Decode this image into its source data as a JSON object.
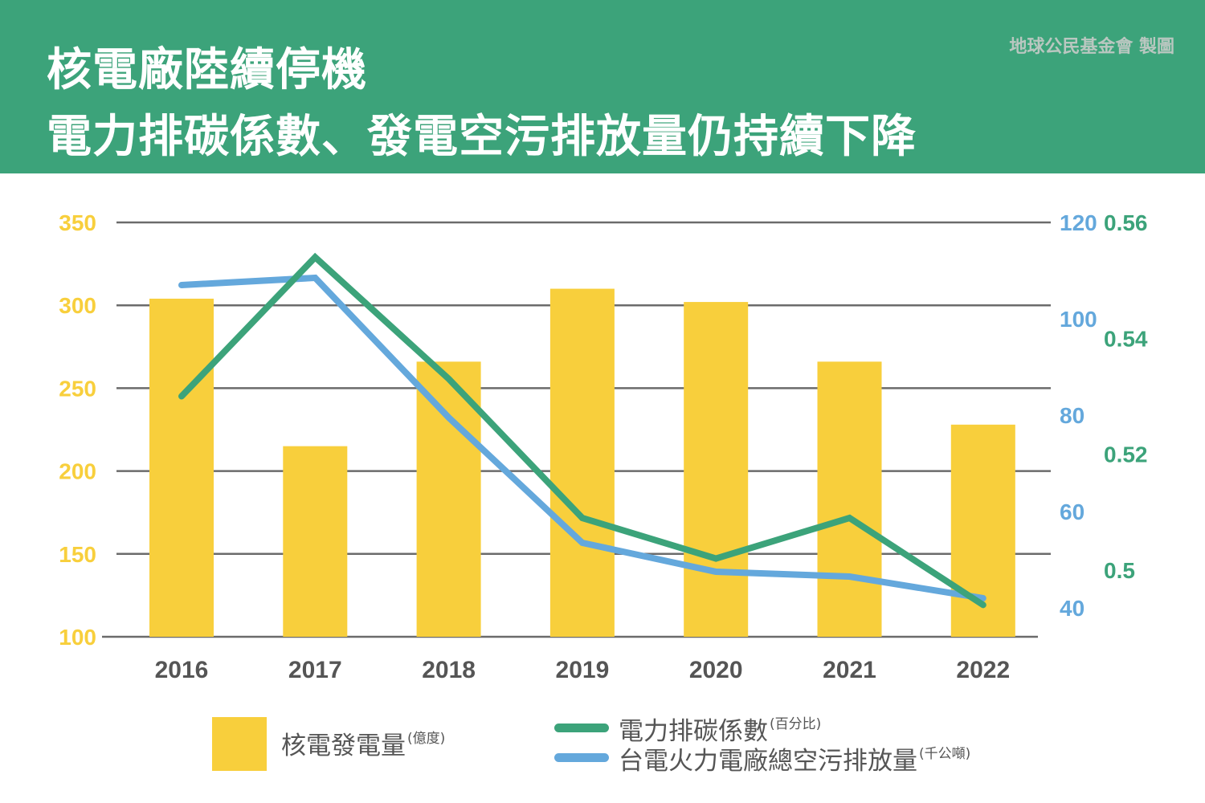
{
  "header": {
    "title_line1": "核電廠陸續停機",
    "title_line2": "電力排碳係數、發電空污排放量仍持續下降",
    "credit": "地球公民基金會 製圖",
    "background_color": "#3ca37a"
  },
  "legend": {
    "items": [
      {
        "label": "核電發電量",
        "unit": "(億度)",
        "color": "#f8cf3c",
        "kind": "bar"
      },
      {
        "label": "電力排碳係數",
        "unit": "(百分比)",
        "color": "#3ca37a",
        "kind": "line"
      },
      {
        "label": "台電火力電廠總空污排放量",
        "unit": "(千公噸)",
        "color": "#64a8dc",
        "kind": "line"
      }
    ]
  },
  "chart_data": {
    "type": "bar+line",
    "title": "核電廠陸續停機 電力排碳係數、發電空污排放量仍持續下降",
    "categories": [
      "2016",
      "2017",
      "2018",
      "2019",
      "2020",
      "2021",
      "2022"
    ],
    "grid": true,
    "legend_position": "bottom",
    "axes": {
      "left": {
        "label": "核電發電量(億度)",
        "ylim": [
          100,
          350
        ],
        "ticks": [
          100,
          150,
          200,
          250,
          300,
          350
        ],
        "color": "#f8cf3c"
      },
      "right_blue": {
        "label": "台電火力電廠總空污排放量(千公噸)",
        "ylim": [
          34,
          120
        ],
        "ticks": [
          40,
          60,
          80,
          100,
          120
        ],
        "color": "#64a8dc"
      },
      "right_green": {
        "label": "電力排碳係數(百分比)",
        "ylim": [
          0.4885,
          0.56
        ],
        "ticks": [
          0.5,
          0.52,
          0.54,
          0.56
        ],
        "tick_labels": [
          "0.5",
          "0.52",
          "0.54",
          "0.56"
        ],
        "color": "#3ca37a"
      }
    },
    "series": [
      {
        "name": "核電發電量",
        "unit": "億度",
        "type": "bar",
        "axis": "left",
        "color": "#f8cf3c",
        "values": [
          304,
          215,
          266,
          310,
          302,
          266,
          228
        ]
      },
      {
        "name": "電力排碳係數",
        "unit": "百分比",
        "type": "line",
        "axis": "right_green",
        "color": "#3ca37a",
        "values": [
          0.53,
          0.554,
          0.533,
          0.509,
          0.502,
          0.509,
          0.494
        ]
      },
      {
        "name": "台電火力電廠總空污排放量",
        "unit": "千公噸",
        "type": "line",
        "axis": "right_blue",
        "color": "#64a8dc",
        "values": [
          107,
          108.5,
          79.5,
          53.5,
          47.5,
          46.5,
          42
        ]
      }
    ]
  }
}
